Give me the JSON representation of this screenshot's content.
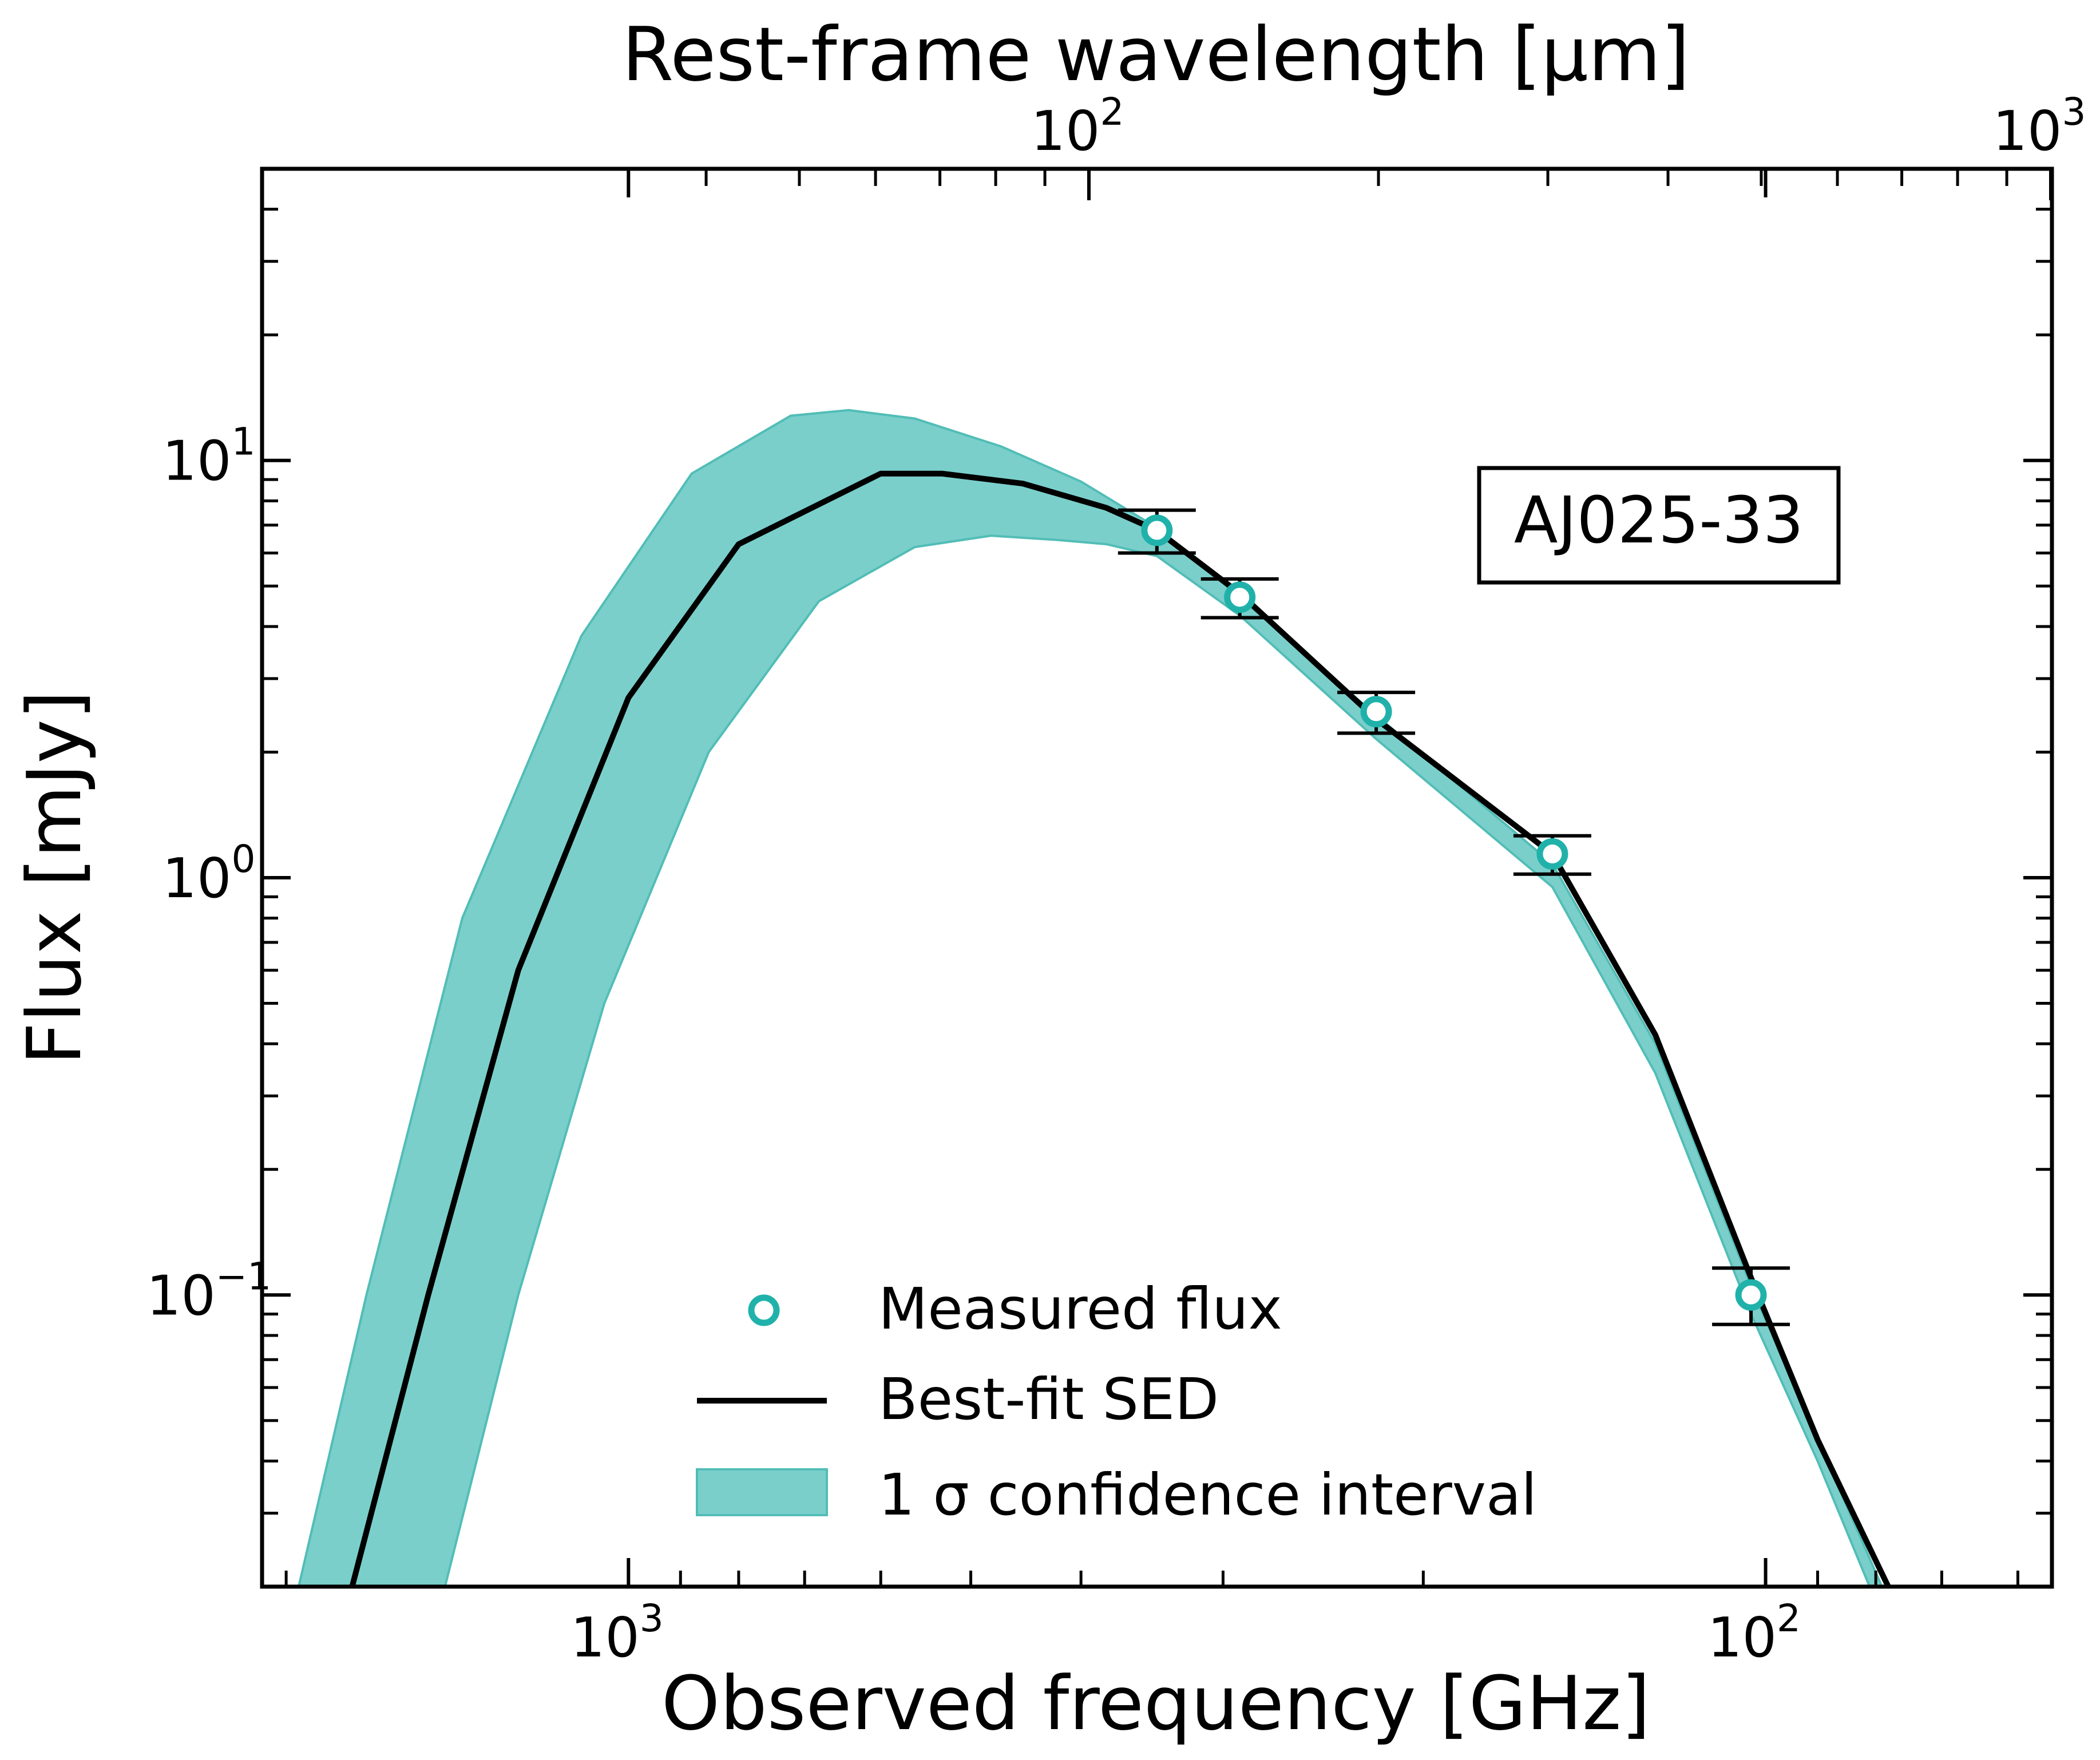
{
  "chart_data": {
    "type": "line",
    "scale": {
      "x": "log",
      "y": "log"
    },
    "title": "",
    "xlabel": "Observed frequency [GHz]",
    "ylabel": "Flux [mJy]",
    "x2label": "Rest-frame wavelength [μm]",
    "xlim": [
      2100,
      56
    ],
    "ylim": [
      0.02,
      50
    ],
    "x_ticks": [
      {
        "value": 1000,
        "base": "10",
        "exp": "3"
      },
      {
        "value": 100,
        "base": "10",
        "exp": "2"
      }
    ],
    "x2_ticks": [
      {
        "value": 100,
        "base": "10",
        "exp": "2"
      },
      {
        "value": 1000,
        "base": "10",
        "exp": "3"
      }
    ],
    "y_ticks": [
      {
        "value": 0.1,
        "base": "10",
        "exp": "−1"
      },
      {
        "value": 1,
        "base": "10",
        "exp": "0"
      },
      {
        "value": 10,
        "base": "10",
        "exp": "1"
      }
    ],
    "source_label": "AJ025-33",
    "series": [
      {
        "name": "Measured flux",
        "kind": "points",
        "color": "#20b2aa",
        "points": [
          {
            "x": 343,
            "y": 6.8,
            "err_lo": 0.8,
            "err_hi": 0.8
          },
          {
            "x": 290,
            "y": 4.7,
            "err_lo": 0.5,
            "err_hi": 0.5
          },
          {
            "x": 220,
            "y": 2.5,
            "err_lo": 0.28,
            "err_hi": 0.28
          },
          {
            "x": 154,
            "y": 1.14,
            "err_lo": 0.12,
            "err_hi": 0.12
          },
          {
            "x": 103,
            "y": 0.1,
            "err_lo": 0.015,
            "err_hi": 0.016
          }
        ]
      },
      {
        "name": "Best-fit SED",
        "kind": "line",
        "color": "#000000",
        "points": [
          {
            "x": 1750,
            "y": 0.02
          },
          {
            "x": 1500,
            "y": 0.1
          },
          {
            "x": 1250,
            "y": 0.6
          },
          {
            "x": 1000,
            "y": 2.7
          },
          {
            "x": 800,
            "y": 6.3
          },
          {
            "x": 600,
            "y": 9.3
          },
          {
            "x": 530,
            "y": 9.3
          },
          {
            "x": 450,
            "y": 8.8
          },
          {
            "x": 380,
            "y": 7.7
          },
          {
            "x": 343,
            "y": 6.8
          },
          {
            "x": 290,
            "y": 4.8
          },
          {
            "x": 220,
            "y": 2.4
          },
          {
            "x": 154,
            "y": 1.14
          },
          {
            "x": 125,
            "y": 0.42
          },
          {
            "x": 103,
            "y": 0.11
          },
          {
            "x": 90,
            "y": 0.045
          },
          {
            "x": 78,
            "y": 0.02
          }
        ]
      },
      {
        "name": "1 σ confidence interval",
        "kind": "band",
        "color": "#7acfcb",
        "edge_color": "#52bdb6",
        "upper": [
          {
            "x": 1950,
            "y": 0.02
          },
          {
            "x": 1700,
            "y": 0.1
          },
          {
            "x": 1400,
            "y": 0.8
          },
          {
            "x": 1100,
            "y": 3.8
          },
          {
            "x": 880,
            "y": 9.3
          },
          {
            "x": 720,
            "y": 12.8
          },
          {
            "x": 640,
            "y": 13.2
          },
          {
            "x": 560,
            "y": 12.6
          },
          {
            "x": 470,
            "y": 10.8
          },
          {
            "x": 400,
            "y": 8.9
          },
          {
            "x": 343,
            "y": 6.9
          },
          {
            "x": 290,
            "y": 4.7
          },
          {
            "x": 220,
            "y": 2.45
          },
          {
            "x": 154,
            "y": 1.08
          },
          {
            "x": 125,
            "y": 0.4
          },
          {
            "x": 103,
            "y": 0.105
          },
          {
            "x": 90,
            "y": 0.045
          },
          {
            "x": 79,
            "y": 0.02
          }
        ],
        "lower": [
          {
            "x": 1450,
            "y": 0.02
          },
          {
            "x": 1250,
            "y": 0.1
          },
          {
            "x": 1050,
            "y": 0.5
          },
          {
            "x": 850,
            "y": 2.0
          },
          {
            "x": 680,
            "y": 4.6
          },
          {
            "x": 560,
            "y": 6.2
          },
          {
            "x": 480,
            "y": 6.6
          },
          {
            "x": 420,
            "y": 6.45
          },
          {
            "x": 380,
            "y": 6.3
          },
          {
            "x": 343,
            "y": 5.9
          },
          {
            "x": 290,
            "y": 4.25
          },
          {
            "x": 220,
            "y": 2.15
          },
          {
            "x": 154,
            "y": 0.95
          },
          {
            "x": 125,
            "y": 0.34
          },
          {
            "x": 103,
            "y": 0.09
          },
          {
            "x": 90,
            "y": 0.04
          },
          {
            "x": 81,
            "y": 0.02
          }
        ]
      }
    ],
    "legend": {
      "position": "bottom-center"
    }
  }
}
